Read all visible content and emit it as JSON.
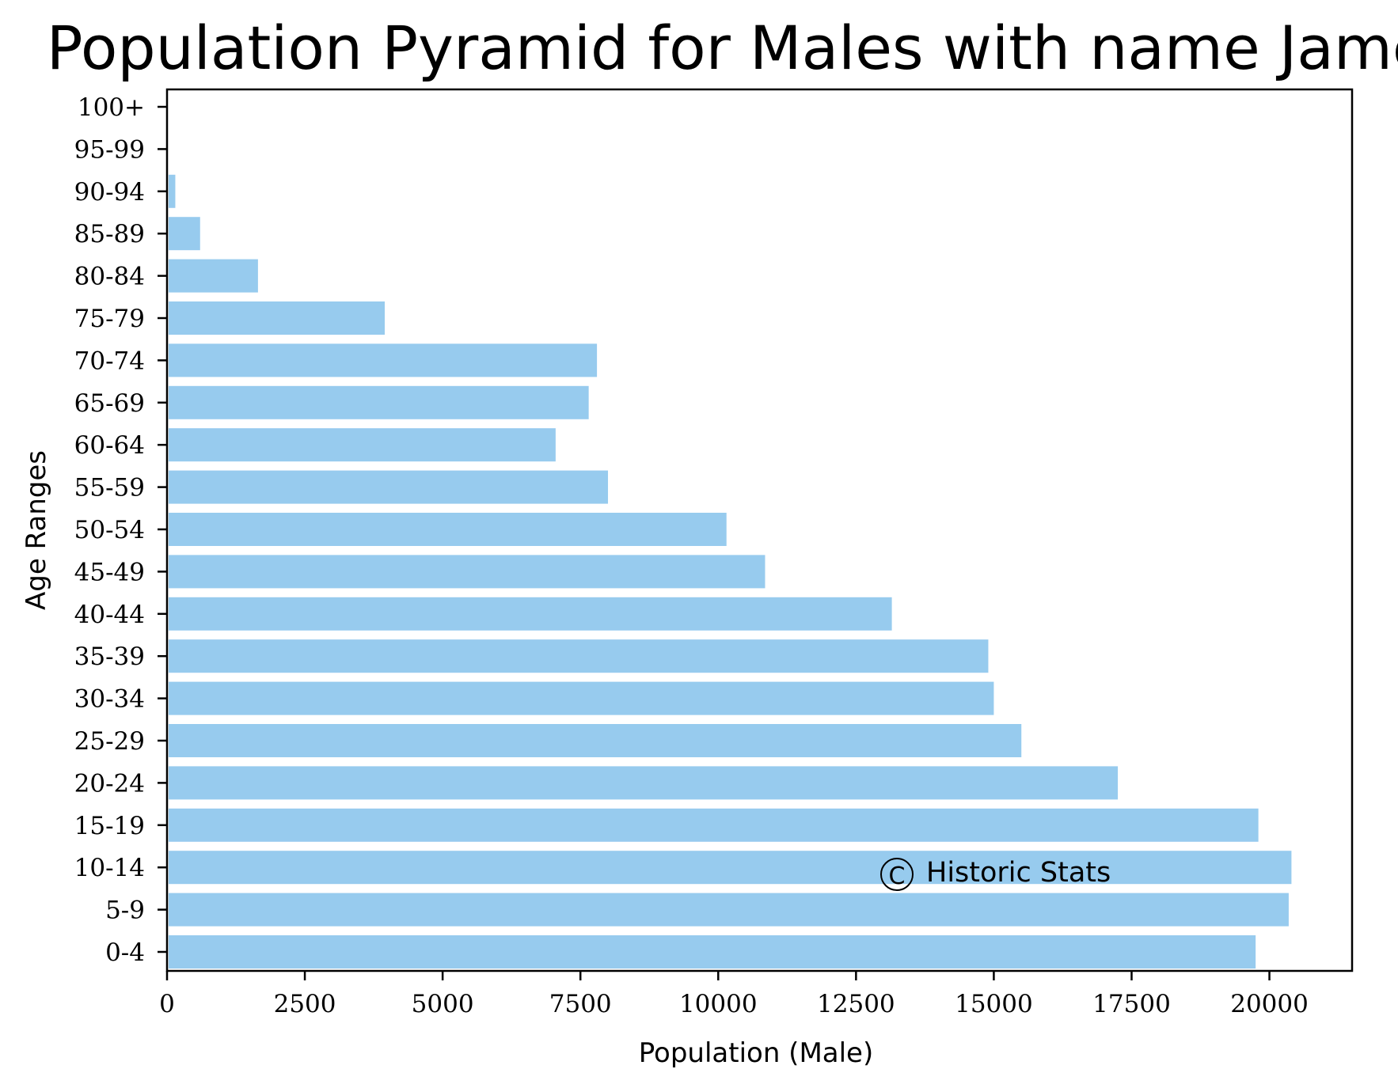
{
  "chart_data": {
    "type": "bar",
    "orientation": "horizontal",
    "title": "Population Pyramid for Males with name James",
    "xlabel": "Population (Male)",
    "ylabel": "Age Ranges",
    "categories": [
      "0-4",
      "5-9",
      "10-14",
      "15-19",
      "20-24",
      "25-29",
      "30-34",
      "35-39",
      "40-44",
      "45-49",
      "50-54",
      "55-59",
      "60-64",
      "65-69",
      "70-74",
      "75-79",
      "80-84",
      "85-89",
      "90-94",
      "95-99",
      "100+"
    ],
    "values": [
      19750,
      20350,
      20400,
      19800,
      17250,
      15500,
      15000,
      14900,
      13150,
      10850,
      10150,
      8000,
      7050,
      7650,
      7800,
      3950,
      1650,
      600,
      150,
      0,
      0
    ],
    "xticks": [
      0,
      2500,
      5000,
      7500,
      10000,
      12500,
      15000,
      17500,
      20000
    ],
    "xlim": [
      0,
      21500
    ],
    "bar_color": "#97cbee",
    "grid": false,
    "annotation": {
      "symbol": "C",
      "text": "Historic Stats"
    }
  }
}
